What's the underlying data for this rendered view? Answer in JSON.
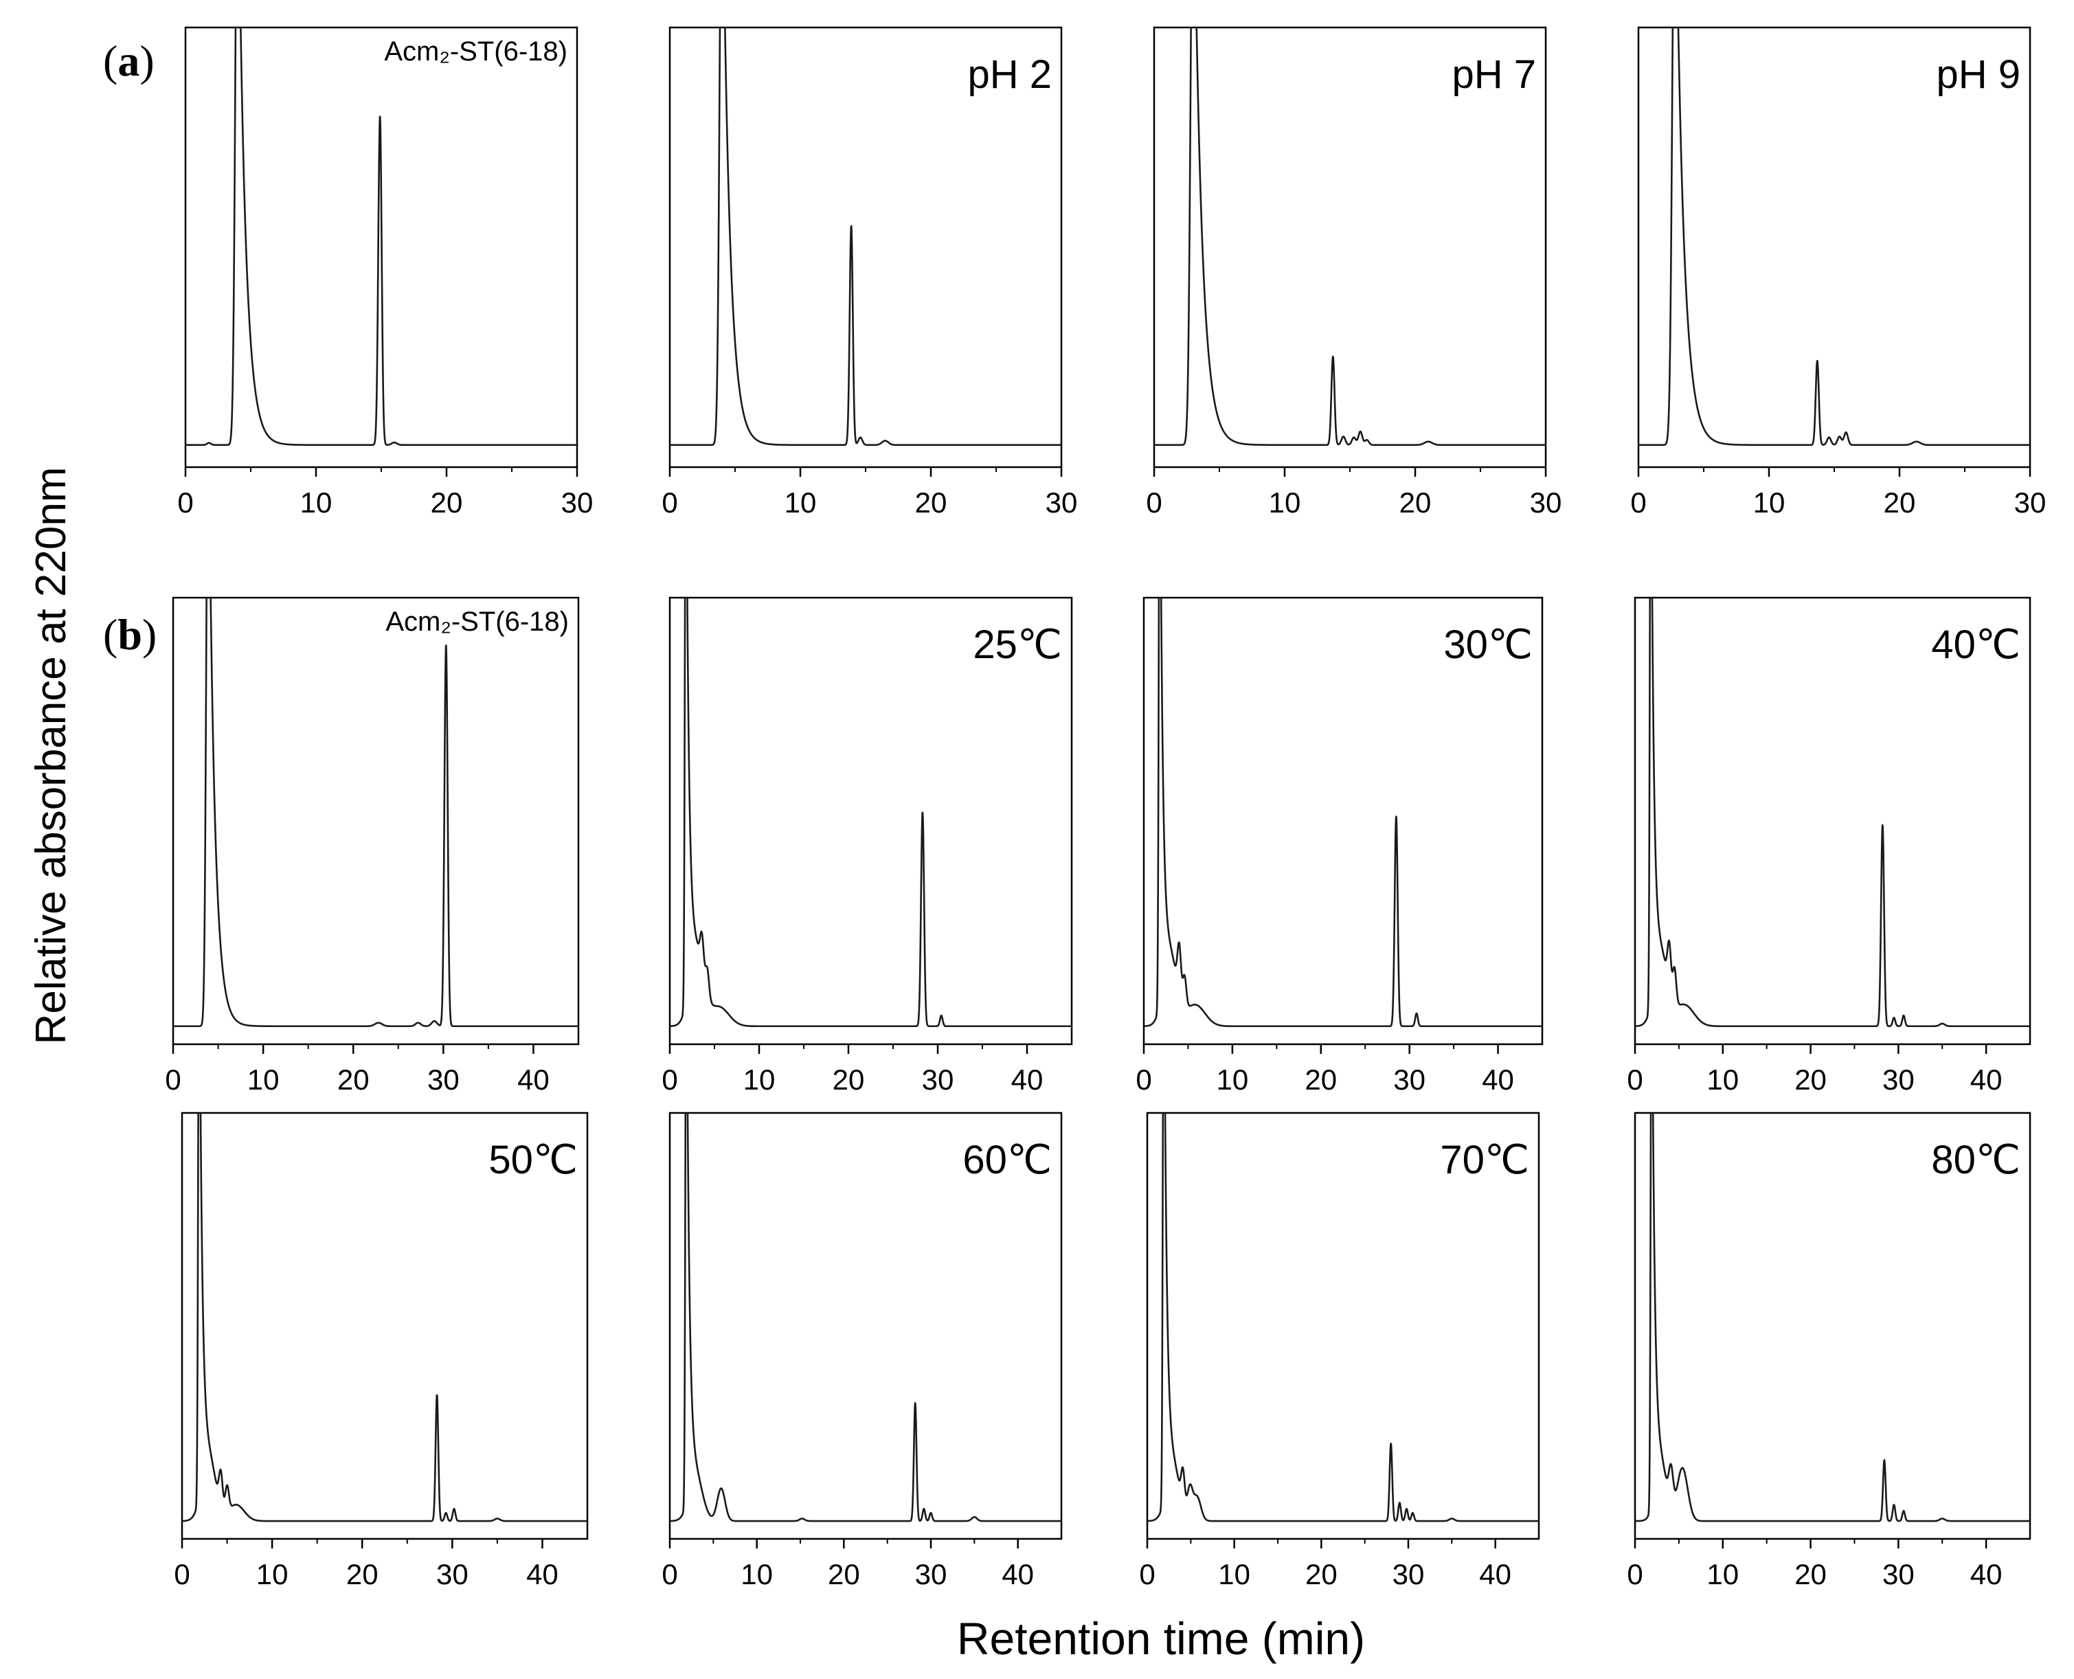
{
  "figure": {
    "ylabel": "Relative absorbance  at 220nm",
    "xlabel": "Retention time (min)",
    "panel_a_letter": "a",
    "panel_b_letter": "b"
  },
  "chart_data": [
    {
      "type": "line",
      "panel": "a",
      "title": "Acm₂-ST(6-18)",
      "xlim": [
        0,
        30
      ],
      "xticks": [
        0,
        10,
        20,
        30
      ],
      "ylim": [
        0,
        100
      ],
      "baseline": 2,
      "peaks": [
        {
          "x": 1.8,
          "y": 0.5,
          "w": 0.15
        },
        {
          "x": 4.0,
          "y": 150,
          "w": 1.0,
          "kind": "solvent"
        },
        {
          "x": 14.9,
          "y": 78,
          "w": 0.13
        },
        {
          "x": 16.0,
          "y": 0.6,
          "w": 0.2
        }
      ]
    },
    {
      "type": "line",
      "panel": "a",
      "title": "pH 2",
      "xlim": [
        0,
        30
      ],
      "xticks": [
        0,
        10,
        20,
        30
      ],
      "ylim": [
        0,
        100
      ],
      "baseline": 2,
      "peaks": [
        {
          "x": 4.0,
          "y": 150,
          "w": 1.0,
          "kind": "solvent"
        },
        {
          "x": 13.9,
          "y": 52,
          "w": 0.12
        },
        {
          "x": 14.6,
          "y": 1.8,
          "w": 0.15
        },
        {
          "x": 16.5,
          "y": 1.0,
          "w": 0.25
        }
      ]
    },
    {
      "type": "line",
      "panel": "a",
      "title": "pH 7",
      "xlim": [
        0,
        30
      ],
      "xticks": [
        0,
        10,
        20,
        30
      ],
      "ylim": [
        0,
        100
      ],
      "baseline": 2,
      "peaks": [
        {
          "x": 3.0,
          "y": 150,
          "w": 1.1,
          "kind": "solvent"
        },
        {
          "x": 13.7,
          "y": 21,
          "w": 0.12
        },
        {
          "x": 14.5,
          "y": 2.0,
          "w": 0.15
        },
        {
          "x": 15.3,
          "y": 1.8,
          "w": 0.15
        },
        {
          "x": 15.8,
          "y": 3.2,
          "w": 0.15
        },
        {
          "x": 16.3,
          "y": 1.2,
          "w": 0.15
        },
        {
          "x": 21.0,
          "y": 0.8,
          "w": 0.3
        }
      ]
    },
    {
      "type": "line",
      "panel": "a",
      "title": "pH 9",
      "xlim": [
        0,
        30
      ],
      "xticks": [
        0,
        10,
        20,
        30
      ],
      "ylim": [
        0,
        100
      ],
      "baseline": 2,
      "peaks": [
        {
          "x": 2.8,
          "y": 150,
          "w": 1.1,
          "kind": "solvent"
        },
        {
          "x": 13.7,
          "y": 20,
          "w": 0.12
        },
        {
          "x": 14.6,
          "y": 1.8,
          "w": 0.15
        },
        {
          "x": 15.4,
          "y": 2.0,
          "w": 0.15
        },
        {
          "x": 15.9,
          "y": 3.0,
          "w": 0.15
        },
        {
          "x": 21.3,
          "y": 0.8,
          "w": 0.3
        }
      ]
    },
    {
      "type": "line",
      "panel": "b",
      "title": "Acm₂-ST(6-18)",
      "xlim": [
        0,
        45
      ],
      "xticks": [
        0,
        10,
        20,
        30,
        40
      ],
      "ylim": [
        0,
        100
      ],
      "baseline": 1,
      "peaks": [
        {
          "x": 3.9,
          "y": 150,
          "w": 1.2,
          "kind": "solvent"
        },
        {
          "x": 22.8,
          "y": 0.8,
          "w": 0.4
        },
        {
          "x": 27.2,
          "y": 0.8,
          "w": 0.3
        },
        {
          "x": 29.0,
          "y": 1.2,
          "w": 0.3
        },
        {
          "x": 30.3,
          "y": 89,
          "w": 0.18
        }
      ]
    },
    {
      "type": "line",
      "panel": "b",
      "title": "25℃",
      "xlim": [
        0,
        45
      ],
      "xticks": [
        0,
        10,
        20,
        30,
        40
      ],
      "ylim": [
        0,
        100
      ],
      "baseline": 1,
      "peaks": [
        {
          "x": 1.8,
          "y": 150,
          "w": 0.6,
          "kind": "solvent"
        },
        {
          "x": 3.0,
          "y": 16,
          "w": 0.8
        },
        {
          "x": 3.6,
          "y": 8,
          "w": 0.2
        },
        {
          "x": 4.2,
          "y": 6,
          "w": 0.2
        },
        {
          "x": 5.5,
          "y": 4.5,
          "w": 1.1
        },
        {
          "x": 28.3,
          "y": 50,
          "w": 0.17
        },
        {
          "x": 30.4,
          "y": 2.5,
          "w": 0.15
        }
      ]
    },
    {
      "type": "line",
      "panel": "b",
      "title": "30℃",
      "xlim": [
        0,
        45
      ],
      "xticks": [
        0,
        10,
        20,
        30,
        40
      ],
      "ylim": [
        0,
        100
      ],
      "baseline": 1,
      "peaks": [
        {
          "x": 1.8,
          "y": 150,
          "w": 0.6,
          "kind": "solvent"
        },
        {
          "x": 3.0,
          "y": 15,
          "w": 0.8
        },
        {
          "x": 4.0,
          "y": 11,
          "w": 0.2
        },
        {
          "x": 4.6,
          "y": 7,
          "w": 0.2
        },
        {
          "x": 5.8,
          "y": 5,
          "w": 1.1
        },
        {
          "x": 28.5,
          "y": 49,
          "w": 0.17
        },
        {
          "x": 30.8,
          "y": 3,
          "w": 0.15
        }
      ]
    },
    {
      "type": "line",
      "panel": "b",
      "title": "40℃",
      "xlim": [
        0,
        45
      ],
      "xticks": [
        0,
        10,
        20,
        30,
        40
      ],
      "ylim": [
        0,
        100
      ],
      "baseline": 1,
      "peaks": [
        {
          "x": 1.8,
          "y": 150,
          "w": 0.6,
          "kind": "solvent"
        },
        {
          "x": 3.0,
          "y": 15,
          "w": 0.8
        },
        {
          "x": 3.9,
          "y": 10,
          "w": 0.2
        },
        {
          "x": 4.5,
          "y": 8,
          "w": 0.2
        },
        {
          "x": 5.6,
          "y": 5,
          "w": 1.1
        },
        {
          "x": 28.2,
          "y": 47,
          "w": 0.17
        },
        {
          "x": 29.5,
          "y": 2.0,
          "w": 0.15
        },
        {
          "x": 30.6,
          "y": 2.5,
          "w": 0.15
        },
        {
          "x": 35.0,
          "y": 0.6,
          "w": 0.3
        }
      ]
    },
    {
      "type": "line",
      "panel": "b",
      "title": "50℃",
      "xlim": [
        0,
        45
      ],
      "xticks": [
        0,
        10,
        20,
        30,
        40
      ],
      "ylim": [
        0,
        100
      ],
      "baseline": 1,
      "peaks": [
        {
          "x": 1.9,
          "y": 150,
          "w": 0.6,
          "kind": "solvent"
        },
        {
          "x": 3.0,
          "y": 14,
          "w": 0.8
        },
        {
          "x": 4.3,
          "y": 8,
          "w": 0.2
        },
        {
          "x": 5.0,
          "y": 6,
          "w": 0.2
        },
        {
          "x": 6.0,
          "y": 4,
          "w": 0.9
        },
        {
          "x": 28.3,
          "y": 31,
          "w": 0.15
        },
        {
          "x": 29.3,
          "y": 2.0,
          "w": 0.15
        },
        {
          "x": 30.2,
          "y": 3.0,
          "w": 0.15
        },
        {
          "x": 35.0,
          "y": 0.6,
          "w": 0.3
        }
      ]
    },
    {
      "type": "line",
      "panel": "b",
      "title": "60℃",
      "xlim": [
        0,
        45
      ],
      "xticks": [
        0,
        10,
        20,
        30,
        40
      ],
      "ylim": [
        0,
        100
      ],
      "baseline": 1,
      "peaks": [
        {
          "x": 1.9,
          "y": 150,
          "w": 0.6,
          "kind": "solvent"
        },
        {
          "x": 3.0,
          "y": 10,
          "w": 0.8
        },
        {
          "x": 5.9,
          "y": 8,
          "w": 0.45
        },
        {
          "x": 15.2,
          "y": 0.6,
          "w": 0.3
        },
        {
          "x": 28.2,
          "y": 29,
          "w": 0.15
        },
        {
          "x": 29.2,
          "y": 3.0,
          "w": 0.15
        },
        {
          "x": 30.0,
          "y": 2.0,
          "w": 0.15
        },
        {
          "x": 35.0,
          "y": 1.0,
          "w": 0.3
        }
      ]
    },
    {
      "type": "line",
      "panel": "b",
      "title": "70℃",
      "xlim": [
        0,
        45
      ],
      "xticks": [
        0,
        10,
        20,
        30,
        40
      ],
      "ylim": [
        0,
        100
      ],
      "baseline": 1,
      "peaks": [
        {
          "x": 1.9,
          "y": 150,
          "w": 0.6,
          "kind": "solvent"
        },
        {
          "x": 3.0,
          "y": 12,
          "w": 0.8
        },
        {
          "x": 4.1,
          "y": 8,
          "w": 0.2
        },
        {
          "x": 4.9,
          "y": 7,
          "w": 0.3
        },
        {
          "x": 5.7,
          "y": 6,
          "w": 0.45
        },
        {
          "x": 28.0,
          "y": 19,
          "w": 0.15
        },
        {
          "x": 29.0,
          "y": 4.5,
          "w": 0.15
        },
        {
          "x": 29.8,
          "y": 3.0,
          "w": 0.15
        },
        {
          "x": 30.5,
          "y": 2.0,
          "w": 0.15
        },
        {
          "x": 35.0,
          "y": 0.6,
          "w": 0.3
        }
      ]
    },
    {
      "type": "line",
      "panel": "b",
      "title": "80℃",
      "xlim": [
        0,
        45
      ],
      "xticks": [
        0,
        10,
        20,
        30,
        40
      ],
      "ylim": [
        0,
        100
      ],
      "baseline": 1,
      "peaks": [
        {
          "x": 1.9,
          "y": 150,
          "w": 0.6,
          "kind": "solvent"
        },
        {
          "x": 3.0,
          "y": 12,
          "w": 0.7
        },
        {
          "x": 4.1,
          "y": 9,
          "w": 0.25
        },
        {
          "x": 5.4,
          "y": 13,
          "w": 0.6
        },
        {
          "x": 28.4,
          "y": 15,
          "w": 0.15
        },
        {
          "x": 29.5,
          "y": 4.0,
          "w": 0.15
        },
        {
          "x": 30.6,
          "y": 2.5,
          "w": 0.15
        },
        {
          "x": 35.0,
          "y": 0.6,
          "w": 0.3
        }
      ]
    }
  ]
}
